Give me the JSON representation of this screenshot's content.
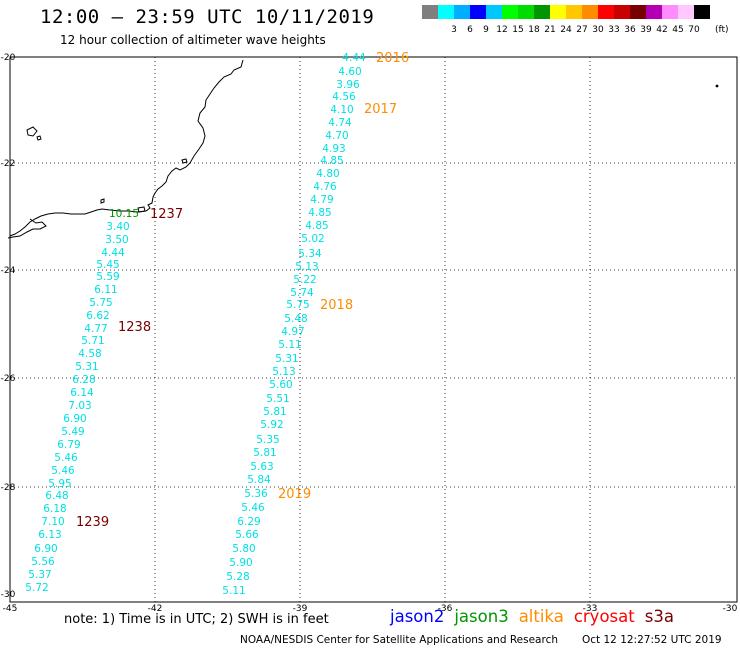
{
  "header": {
    "title": "12:00 – 23:59 UTC 10/11/2019",
    "subtitle": "12 hour collection of altimeter wave heights"
  },
  "color_scale": {
    "unit_label": "(ft)",
    "swatches": [
      {
        "color": "#7f7f7f",
        "label": ""
      },
      {
        "color": "#00ffff",
        "label": "3"
      },
      {
        "color": "#00afff",
        "label": "6"
      },
      {
        "color": "#0000ff",
        "label": "9"
      },
      {
        "color": "#00c8ff",
        "label": "12"
      },
      {
        "color": "#00ff00",
        "label": "15"
      },
      {
        "color": "#00dc00",
        "label": "18"
      },
      {
        "color": "#009600",
        "label": "21"
      },
      {
        "color": "#ffff00",
        "label": "24"
      },
      {
        "color": "#ffc800",
        "label": "27"
      },
      {
        "color": "#ff8c00",
        "label": "30"
      },
      {
        "color": "#ff0000",
        "label": "33"
      },
      {
        "color": "#c80000",
        "label": "36"
      },
      {
        "color": "#780000",
        "label": "39"
      },
      {
        "color": "#b400b4",
        "label": "42"
      },
      {
        "color": "#ff8cff",
        "label": "45"
      },
      {
        "color": "#ffc8ff",
        "label": "70"
      },
      {
        "color": "#000000",
        "label": ""
      }
    ]
  },
  "axes": {
    "lat_labels": [
      "-20",
      "-22",
      "-24",
      "-26",
      "-28",
      "-30"
    ],
    "lon_labels": [
      "-45",
      "-42",
      "-39",
      "-36",
      "-33",
      "-30"
    ]
  },
  "tracks": [
    {
      "name": "pass-1237-1239",
      "values": [
        "3.40",
        "3.50",
        "4.44",
        "5.45",
        "5.59",
        "6.11",
        "5.75",
        "6.62",
        "4.77",
        "5.71",
        "4.58",
        "5.31",
        "6.28",
        "6.14",
        "7.03",
        "6.90",
        "5.49",
        "6.79",
        "5.46",
        "5.46",
        "5.95",
        "6.48",
        "6.18",
        "7.10",
        "6.13",
        "6.90",
        "5.56",
        "5.37",
        "5.72"
      ]
    },
    {
      "name": "pass-2016-2019",
      "values": [
        "4.44",
        "4.60",
        "3.96",
        "4.56",
        "4.10",
        "4.74",
        "4.70",
        "4.93",
        "4.85",
        "4.80",
        "4.76",
        "4.79",
        "4.85",
        "4.85",
        "5.02",
        "5.34",
        "5.13",
        "5.22",
        "5.74",
        "5.75",
        "5.48",
        "4.97",
        "5.11",
        "5.31",
        "5.13",
        "5.60",
        "5.51",
        "5.81",
        "5.92",
        "5.35",
        "5.81",
        "5.63",
        "5.84",
        "5.36",
        "5.46",
        "6.29",
        "5.66",
        "5.80",
        "5.90",
        "5.28",
        "5.11"
      ]
    }
  ],
  "overlap_label": "10.15",
  "pass_labels": [
    {
      "text": "1237",
      "color": "#780000"
    },
    {
      "text": "1238",
      "color": "#780000"
    },
    {
      "text": "1239",
      "color": "#780000"
    },
    {
      "text": "2016",
      "color": "#ff8c00"
    },
    {
      "text": "2017",
      "color": "#ff8c00"
    },
    {
      "text": "2018",
      "color": "#ff8c00"
    },
    {
      "text": "2019",
      "color": "#ff8c00"
    }
  ],
  "footer": {
    "note": "note:  1) Time is in UTC;  2) SWH is in feet",
    "legend": [
      {
        "text": "jason2",
        "color": "#0000ff"
      },
      {
        "text": "jason3",
        "color": "#009600"
      },
      {
        "text": "altika",
        "color": "#ff8c00"
      },
      {
        "text": "cryosat",
        "color": "#ff0000"
      },
      {
        "text": "s3a",
        "color": "#780000"
      }
    ],
    "credit": "NOAA/NESDIS Center for Satellite Applications and Research",
    "timestamp": "Oct 12 12:27:52 UTC 2019"
  }
}
